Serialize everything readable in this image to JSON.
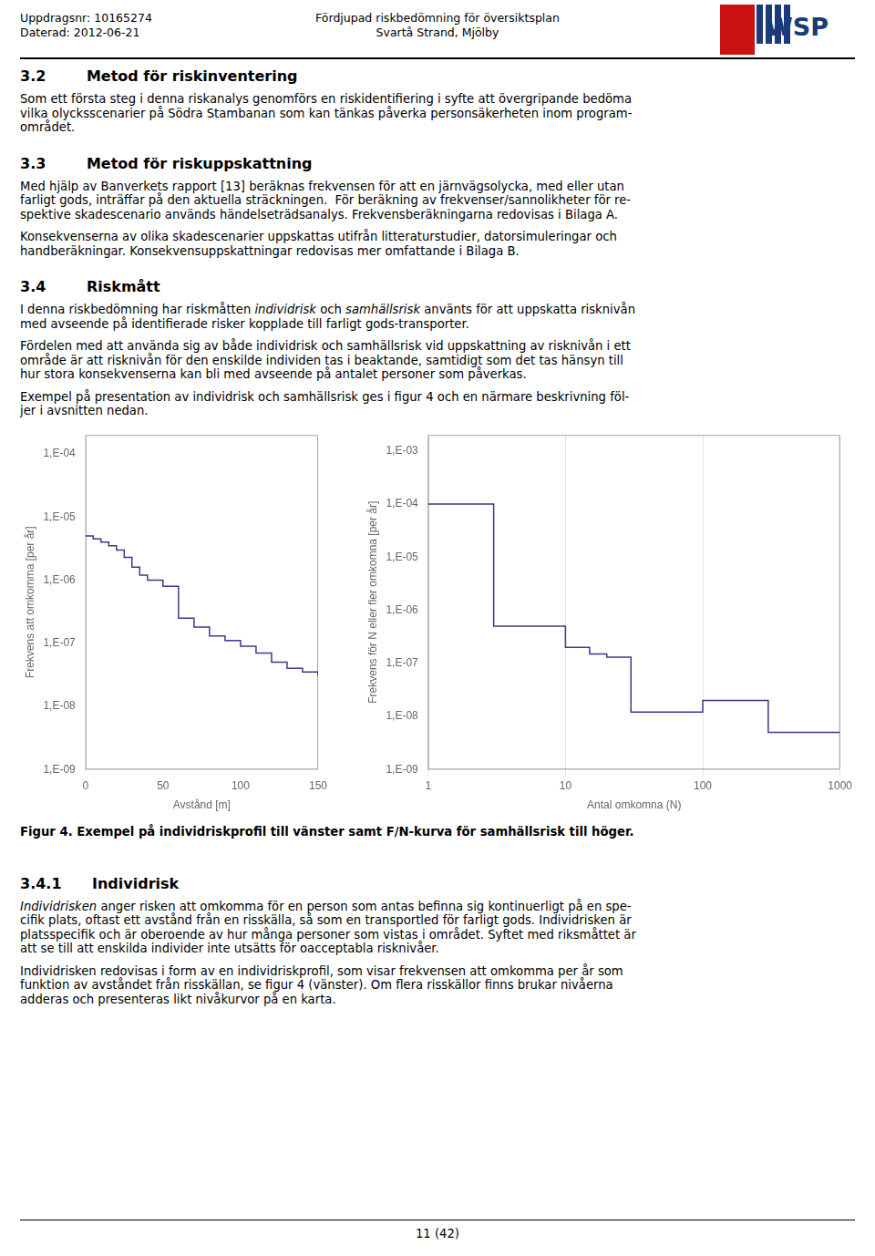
{
  "header": {
    "left": [
      "Uppdragsnr: 10165274",
      "Daterad: 2012-06-21"
    ],
    "center": [
      "Fördjupad riskbedömning för översiktsplan",
      "Svartå Strand, Mjölby"
    ],
    "logo": "WSP"
  },
  "body_before_charts": [
    {
      "heading": "3.2        Metod för riskinventering"
    },
    {
      "lines": [
        "Som ett första steg i denna riskanalys genomförs en riskidentifiering i syfte att övergripande bedöma",
        "vilka olycksscenarier på Södra Stambanan som kan tänkas påverka personsäkerheten inom program-",
        "området."
      ]
    },
    {
      "heading": "3.3        Metod för riskuppskattning"
    },
    {
      "lines": [
        "Med hjälp av Banverkets rapport [13] beräknas frekvensen för att en järnvägsolycka, med eller utan",
        "farligt gods, inträffar på den aktuella sträckningen.  För beräkning av frekvenser/sannolikheter för re-",
        "spektive skadescenario används händelseträdsanalys. Frekvensberäkningarna redovisas i Bilaga A."
      ]
    },
    {
      "lines": [
        "Konsekvenserna av olika skadescenarier uppskattas utifrån litteraturstudier, datorsimuleringar och",
        "handberäkningar. Konsekvensuppskattningar redovisas mer omfattande i Bilaga B."
      ]
    },
    {
      "heading": "3.4        Riskmått"
    },
    {
      "lines": [
        [
          "I denna riskbedömning har riskmåtten ",
          {
            "text": "individrisk",
            "italic": true
          },
          " och ",
          {
            "text": "samhällsrisk",
            "italic": true
          },
          " använts för att uppskatta risknivån"
        ],
        "med avseende på identifierade risker kopplade till farligt gods-transporter."
      ]
    },
    {
      "lines": [
        "Fördelen med att använda sig av både individrisk och samhällsrisk vid uppskattning av risknivån i ett",
        "område är att risknivån för den enskilde individen tas i beaktande, samtidigt som det tas hänsyn till",
        "hur stora konsekvenserna kan bli med avseende på antalet personer som påverkas."
      ]
    },
    {
      "lines": [
        "Exempel på presentation av individrisk och samhällsrisk ges i figur 4 och en närmare beskrivning föl-",
        "jer i avsnitten nedan."
      ]
    }
  ],
  "caption": "Figur 4. Exempel på individriskprofil till vänster samt F/N-kurva för samhällsrisk till höger.",
  "body_after_charts": [
    {
      "heading": "3.4.1      Individrisk"
    },
    {
      "lines": [
        [
          {
            "text": "Individrisken",
            "italic": true
          },
          " anger risken att omkomma för en person som antas befinna sig kontinuerligt på en spe-"
        ],
        "cifik plats, oftast ett avstånd från en risskälla, så som en transportled för farligt gods. Individrisken är",
        "platsspecifik och är oberoende av hur många personer som vistas i området. Syftet med riksmåttet är",
        "att se till att enskilda individer inte utsätts för oacceptabla risknivåer."
      ]
    },
    {
      "lines": [
        "Individrisken redovisas i form av en individriskprofil, som visar frekvensen att omkomma per år som",
        "funktion av avståndet från risskällan, se figur 4 (vänster). Om flera risskällor finns brukar nivåerna",
        "adderas och presenteras likt nivåkurvor på en karta."
      ]
    }
  ],
  "footer": "11 (42)",
  "chart_data": [
    {
      "type": "step",
      "x_label": "Avstånd [m]",
      "y_label": "Frekvens att omkomma [per år]",
      "x": [
        0,
        5,
        10,
        15,
        20,
        25,
        30,
        35,
        40,
        50,
        60,
        70,
        80,
        90,
        100,
        110,
        120,
        130,
        140,
        150
      ],
      "values": [
        5e-06,
        4.5e-06,
        4e-06,
        3.5e-06,
        3e-06,
        2.3e-06,
        1.6e-06,
        1.2e-06,
        1e-06,
        8e-07,
        2.5e-07,
        1.8e-07,
        1.3e-07,
        1.1e-07,
        9e-08,
        7e-08,
        5e-08,
        4e-08,
        3.5e-08,
        3e-08
      ],
      "color": "#3a3a8c",
      "log": "y",
      "xlim": [
        0,
        150
      ],
      "ylim": [
        1e-09,
        0.0002
      ],
      "xticks": [
        0,
        50,
        100,
        150
      ],
      "yticks": [
        {
          "value": 1e-09,
          "label": "1,E-09"
        },
        {
          "value": 1e-08,
          "label": "1,E-08"
        },
        {
          "value": 1e-07,
          "label": "1,E-07"
        },
        {
          "value": 1e-06,
          "label": "1,E-06"
        },
        {
          "value": 1e-05,
          "label": "1,E-05"
        },
        {
          "value": 0.0001,
          "label": "1,E-04"
        }
      ],
      "grid": false
    },
    {
      "type": "step",
      "x_label": "Antal omkomna (N)",
      "y_label": "Frekvens för N eller fler omkomna [per år]",
      "x": [
        1,
        2,
        3,
        4,
        10,
        15,
        20,
        30,
        50,
        100,
        200,
        300,
        500,
        1000
      ],
      "values": [
        0.0001,
        0.0001,
        5e-07,
        5e-07,
        2e-07,
        1.5e-07,
        1.3e-07,
        1.2e-08,
        1.2e-08,
        2e-08,
        2e-08,
        5e-09,
        5e-09,
        5e-09
      ],
      "color": "#3a3a8c",
      "log": true,
      "xlim": [
        1,
        1000
      ],
      "ylim": [
        1e-09,
        0.002
      ],
      "xticks": [
        1,
        10,
        100,
        1000
      ],
      "yticks": [
        {
          "value": 1e-09,
          "label": "1,E-09"
        },
        {
          "value": 1e-08,
          "label": "1,E-08"
        },
        {
          "value": 1e-07,
          "label": "1,E-07"
        },
        {
          "value": 1e-06,
          "label": "1,E-06"
        },
        {
          "value": 1e-05,
          "label": "1,E-05"
        },
        {
          "value": 0.0001,
          "label": "1,E-04"
        },
        {
          "value": 0.001,
          "label": "1,E-03"
        }
      ],
      "grid": "x"
    }
  ]
}
